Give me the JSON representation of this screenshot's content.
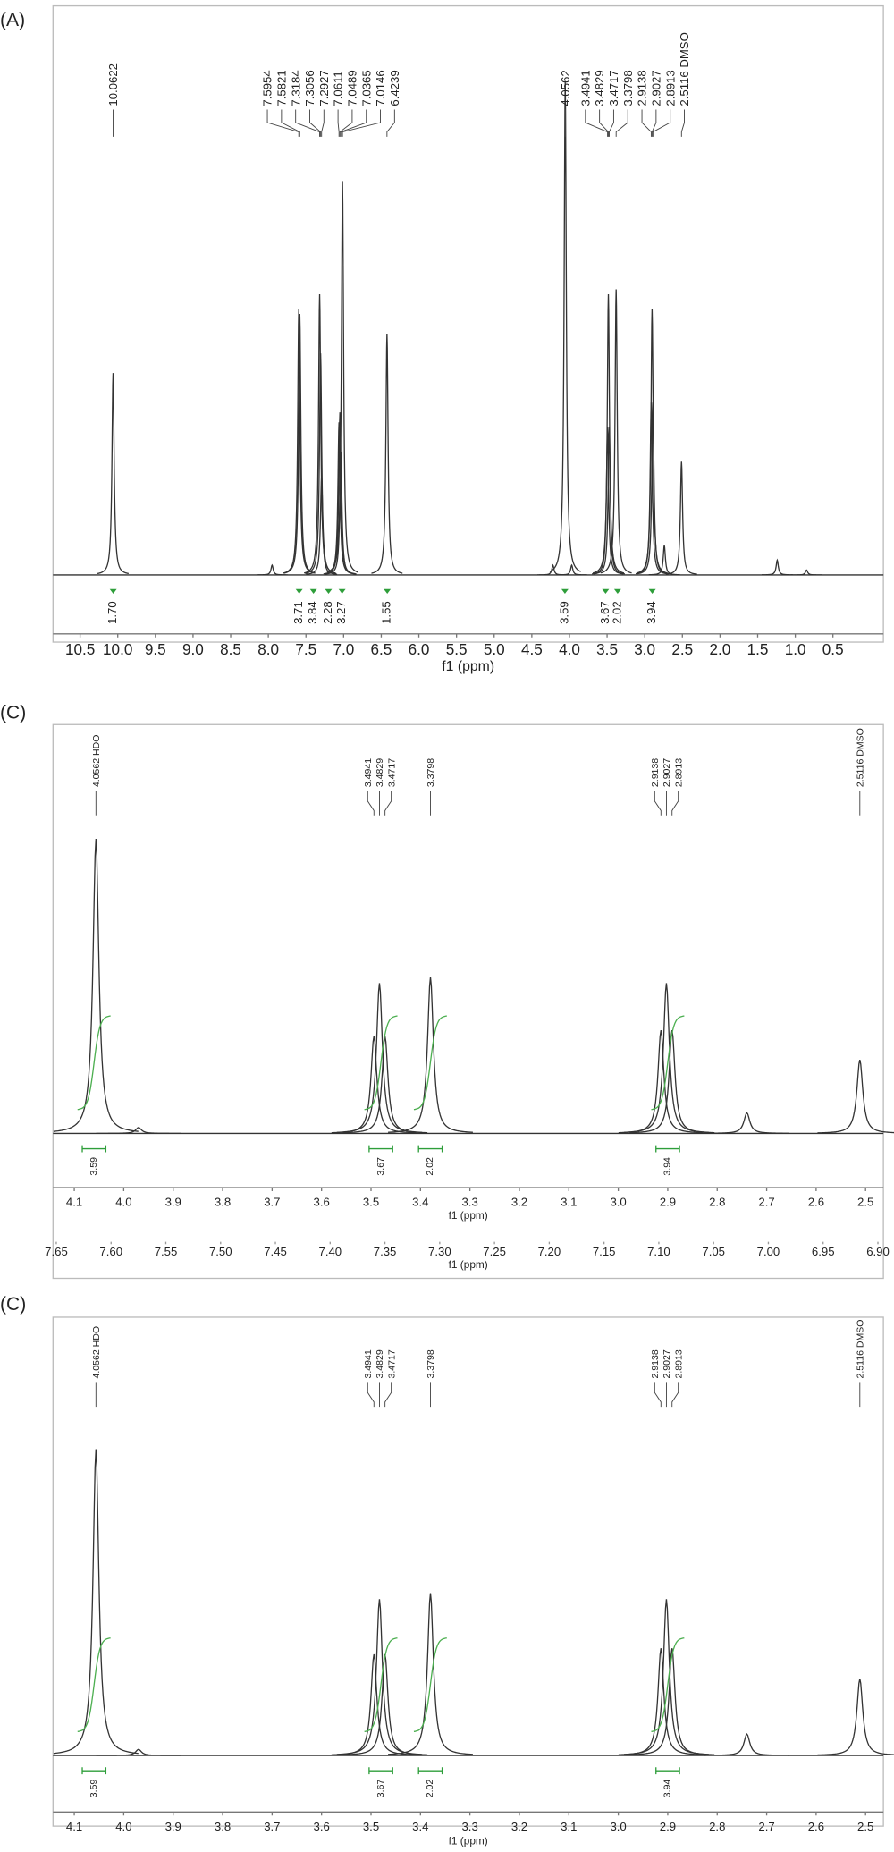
{
  "chart_data": [
    {
      "type": "spectrum",
      "panel_label": "(A)",
      "xlabel": "f1 (ppm)",
      "xlim": [
        10.86,
        -0.17
      ],
      "xticks": [
        10.5,
        {
          "value": 10,
          "label": "10.0"
        },
        9.5,
        {
          "value": 9,
          "label": "9.0"
        },
        8.5,
        {
          "value": 8,
          "label": "8.0"
        },
        7.5,
        {
          "value": 7,
          "label": "7.0"
        },
        6.5,
        {
          "value": 6,
          "label": "6.0"
        },
        5.5,
        {
          "value": 5,
          "label": "5.0"
        },
        4.5,
        {
          "value": 4,
          "label": "4.0"
        },
        3.5,
        {
          "value": 3,
          "label": "3.0"
        },
        2.5,
        {
          "value": 2,
          "label": "2.0"
        },
        1.5,
        {
          "value": 1,
          "label": "1.0"
        },
        0.5
      ],
      "ylim": [
        0,
        100
      ],
      "x": [
        10.0622,
        7.95,
        7.5954,
        7.5821,
        7.3184,
        7.3056,
        7.2927,
        7.0611,
        7.0489,
        7.0365,
        7.0146,
        6.4239,
        4.22,
        4.0562,
        3.97,
        3.4941,
        3.4829,
        3.4717,
        3.3798,
        2.9138,
        2.9027,
        2.8913,
        2.74,
        2.5116,
        1.24,
        0.85
      ],
      "values": [
        41,
        2,
        54,
        53,
        57,
        45,
        20,
        31,
        33,
        25,
        80,
        49,
        2,
        100,
        2,
        30,
        57,
        30,
        58,
        35,
        54,
        35,
        6,
        23,
        3,
        1
      ],
      "peak_labels": [
        {
          "value": 10.0622,
          "label": "10.0622"
        },
        {
          "value": 7.5954,
          "label": "7.5954"
        },
        {
          "value": 7.5821,
          "label": "7.5821"
        },
        {
          "value": 7.3184,
          "label": "7.3184"
        },
        {
          "value": 7.3056,
          "label": "7.3056"
        },
        {
          "value": 7.2927,
          "label": "7.2927"
        },
        {
          "value": 7.0611,
          "label": "7.0611"
        },
        {
          "value": 7.0489,
          "label": "7.0489"
        },
        {
          "value": 7.0365,
          "label": "7.0365"
        },
        {
          "value": 7.0146,
          "label": "7.0146"
        },
        {
          "value": 6.4239,
          "label": "6.4239"
        },
        {
          "value": 4.0562,
          "label": "4.0562"
        },
        {
          "value": 3.4941,
          "label": "3.4941"
        },
        {
          "value": 3.4829,
          "label": "3.4829"
        },
        {
          "value": 3.4717,
          "label": "3.4717"
        },
        {
          "value": 3.3798,
          "label": "3.3798"
        },
        {
          "value": 2.9138,
          "label": "2.9138"
        },
        {
          "value": 2.9027,
          "label": "2.9027"
        },
        {
          "value": 2.8913,
          "label": "2.8913"
        },
        {
          "value": 2.5116,
          "label": "2.5116 DMSO"
        }
      ],
      "integrals": [
        {
          "x": 10.06,
          "value": 1.7,
          "label": "1.70"
        },
        {
          "x": 7.59,
          "value": 3.71,
          "label": "3.71"
        },
        {
          "x": 7.4,
          "value": 3.84,
          "label": "3.84"
        },
        {
          "x": 7.2,
          "value": 2.28,
          "label": "2.28"
        },
        {
          "x": 7.02,
          "value": 3.27,
          "label": "3.27"
        },
        {
          "x": 6.42,
          "value": 1.55,
          "label": "1.55"
        },
        {
          "x": 4.06,
          "value": 3.59,
          "label": "3.59"
        },
        {
          "x": 3.52,
          "value": 3.67,
          "label": "3.67"
        },
        {
          "x": 3.36,
          "value": 2.02,
          "label": "2.02"
        },
        {
          "x": 2.9,
          "value": 3.94,
          "label": "3.94"
        }
      ]
    },
    {
      "type": "spectrum",
      "panel_label": "(C)",
      "xlabel": "f1 (ppm)",
      "xlim": [
        4.143,
        2.464
      ],
      "xticks": [
        4.1,
        {
          "value": 4,
          "label": "4.0"
        },
        3.9,
        3.8,
        3.7,
        3.6,
        3.5,
        3.4,
        3.3,
        3.2,
        3.1,
        {
          "value": 3,
          "label": "3.0"
        },
        2.9,
        2.8,
        2.7,
        2.6,
        2.5
      ],
      "x2lim": [
        7.653,
        6.895
      ],
      "x2ticks": [
        7.65,
        {
          "value": 7.6,
          "label": "7.60"
        },
        7.55,
        {
          "value": 7.5,
          "label": "7.50"
        },
        7.45,
        {
          "value": 7.4,
          "label": "7.40"
        },
        7.35,
        {
          "value": 7.3,
          "label": "7.30"
        },
        7.25,
        {
          "value": 7.2,
          "label": "7.20"
        },
        7.15,
        {
          "value": 7.1,
          "label": "7.10"
        },
        7.05,
        {
          "value": 7,
          "label": "7.00"
        },
        6.95,
        {
          "value": 6.9,
          "label": "6.90"
        }
      ],
      "x2label": "f1 (ppm)",
      "ylim": [
        0,
        100
      ],
      "x": [
        4.0562,
        3.97,
        3.4941,
        3.4829,
        3.4717,
        3.3798,
        2.9138,
        2.9027,
        2.8913,
        2.74,
        2.5116
      ],
      "values": [
        100,
        2,
        33,
        51,
        33,
        53,
        35,
        51,
        35,
        7,
        25
      ],
      "peak_labels": [
        {
          "value": 4.0562,
          "label": "4.0562 HDO"
        },
        {
          "value": 3.4941,
          "label": "3.4941"
        },
        {
          "value": 3.4829,
          "label": "3.4829"
        },
        {
          "value": 3.4717,
          "label": "3.4717"
        },
        {
          "value": 3.3798,
          "label": "3.3798"
        },
        {
          "value": 2.9138,
          "label": "2.9138"
        },
        {
          "value": 2.9027,
          "label": "2.9027"
        },
        {
          "value": 2.8913,
          "label": "2.8913"
        },
        {
          "value": 2.5116,
          "label": "2.5116 DMSO"
        }
      ],
      "integrals": [
        {
          "x": 4.06,
          "value": 3.59,
          "label": "3.59"
        },
        {
          "x": 3.48,
          "value": 3.67,
          "label": "3.67"
        },
        {
          "x": 3.38,
          "value": 2.02,
          "label": "2.02"
        },
        {
          "x": 2.9,
          "value": 3.94,
          "label": "3.94"
        }
      ]
    },
    {
      "type": "spectrum",
      "panel_label": "(C)",
      "xlabel": "f1 (ppm)",
      "xlim": [
        4.143,
        2.464
      ],
      "xticks": [
        4.1,
        {
          "value": 4,
          "label": "4.0"
        },
        3.9,
        3.8,
        3.7,
        3.6,
        3.5,
        3.4,
        3.3,
        3.2,
        3.1,
        {
          "value": 3,
          "label": "3.0"
        },
        2.9,
        2.8,
        2.7,
        2.6,
        2.5
      ],
      "ylim": [
        0,
        100
      ],
      "x": [
        4.0562,
        3.97,
        3.4941,
        3.4829,
        3.4717,
        3.3798,
        2.9138,
        2.9027,
        2.8913,
        2.74,
        2.5116
      ],
      "values": [
        100,
        2,
        33,
        51,
        33,
        53,
        35,
        51,
        35,
        7,
        25
      ],
      "peak_labels": [
        {
          "value": 4.0562,
          "label": "4.0562 HDO"
        },
        {
          "value": 3.4941,
          "label": "3.4941"
        },
        {
          "value": 3.4829,
          "label": "3.4829"
        },
        {
          "value": 3.4717,
          "label": "3.4717"
        },
        {
          "value": 3.3798,
          "label": "3.3798"
        },
        {
          "value": 2.9138,
          "label": "2.9138"
        },
        {
          "value": 2.9027,
          "label": "2.9027"
        },
        {
          "value": 2.8913,
          "label": "2.8913"
        },
        {
          "value": 2.5116,
          "label": "2.5116 DMSO"
        }
      ],
      "integrals": [
        {
          "x": 4.06,
          "value": 3.59,
          "label": "3.59"
        },
        {
          "x": 3.48,
          "value": 3.67,
          "label": "3.67"
        },
        {
          "x": 3.38,
          "value": 2.02,
          "label": "2.02"
        },
        {
          "x": 2.9,
          "value": 3.94,
          "label": "3.94"
        }
      ]
    }
  ]
}
